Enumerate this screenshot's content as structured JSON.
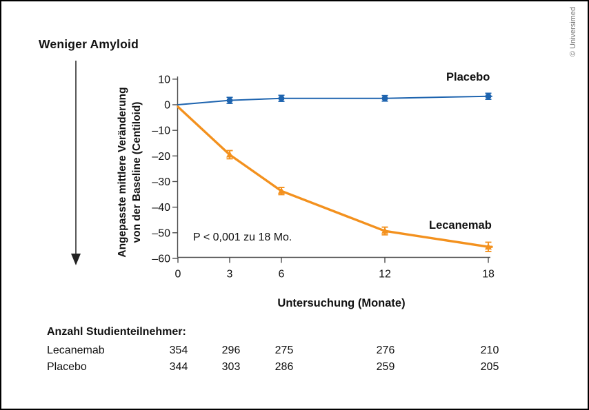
{
  "header": {
    "title": "Weniger Amyloid"
  },
  "copyright": "© Universimed",
  "chart_data": {
    "type": "line",
    "xlabel": "Untersuchung (Monate)",
    "ylabel": "Angepasste mittlere Veränderung von der Baseline (Centiloid)",
    "ylabel_line1": "Angepasste mittlere Veränderung",
    "ylabel_line2": "von der Baseline (Centiloid)",
    "annotation": "P < 0,001 zu 18 Mo.",
    "x": [
      0,
      3,
      6,
      12,
      18
    ],
    "x_tick_labels": [
      "0",
      "3",
      "6",
      "12",
      "18"
    ],
    "y_ticks": [
      10,
      0,
      -10,
      -20,
      -30,
      -40,
      -50,
      -60
    ],
    "y_tick_labels": [
      "10",
      "0",
      "–10",
      "–20",
      "–30",
      "–40",
      "–50",
      "–60"
    ],
    "xlim": [
      0,
      18
    ],
    "ylim": [
      -60,
      10
    ],
    "grid": false,
    "legend_position": "inline-labels",
    "series": [
      {
        "name": "Placebo",
        "color": "#1e64af",
        "marker": "circle",
        "values": [
          0,
          1.7,
          2.5,
          2.5,
          3.3
        ],
        "errors": [
          0,
          1.2,
          1.2,
          1.1,
          1.2
        ]
      },
      {
        "name": "Lecanemab",
        "color": "#f3911e",
        "marker": "triangle",
        "values": [
          -0.8,
          -19.5,
          -33.7,
          -49.3,
          -55.5
        ],
        "errors": [
          0,
          1.6,
          1.4,
          1.5,
          1.8
        ]
      }
    ]
  },
  "participants": {
    "heading": "Anzahl Studienteilnehmer:",
    "rows": [
      {
        "label": "Lecanemab",
        "values": [
          "354",
          "296",
          "275",
          "276",
          "210"
        ]
      },
      {
        "label": "Placebo",
        "values": [
          "344",
          "303",
          "286",
          "259",
          "205"
        ]
      }
    ]
  }
}
